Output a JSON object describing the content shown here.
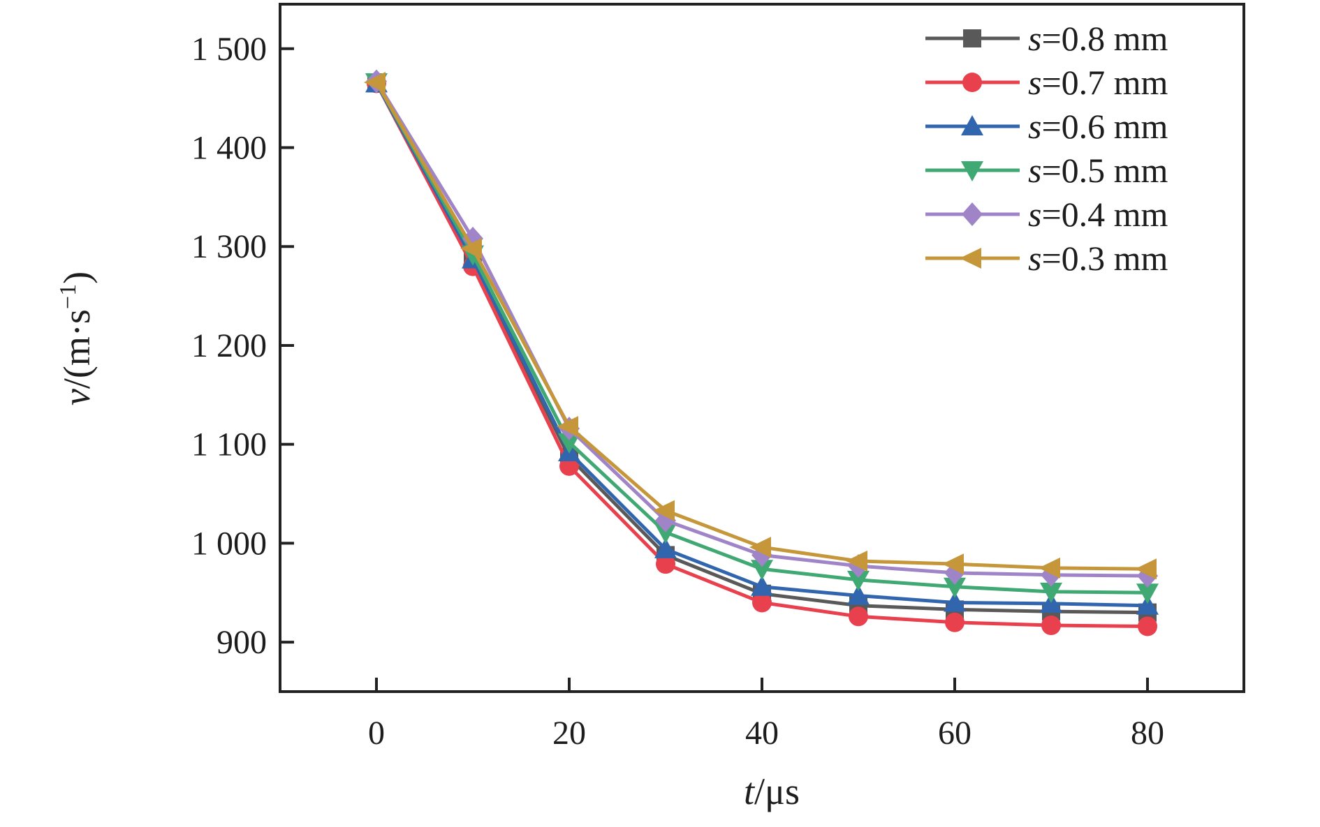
{
  "figure": {
    "background": "#ffffff",
    "frame_color": "#222222",
    "text_color": "#1d1d1d"
  },
  "chart_data": {
    "type": "line",
    "title": "",
    "xlabel": {
      "var": "t",
      "rest": "/μs"
    },
    "ylabel": {
      "var": "v",
      "pre": "/(m·s",
      "sup": "−1",
      "post": ")"
    },
    "xlim": [
      -10,
      90
    ],
    "ylim": [
      850,
      1545
    ],
    "grid": false,
    "legend_position": "top-right-inside",
    "x_ticks": [
      0,
      20,
      40,
      60,
      80
    ],
    "x_tick_labels": [
      "0",
      "20",
      "40",
      "60",
      "80"
    ],
    "y_ticks": [
      900,
      1000,
      1100,
      1200,
      1300,
      1400,
      1500
    ],
    "y_tick_labels": [
      "900",
      "1 000",
      "1 100",
      "1 200",
      "1 300",
      "1 400",
      "1 500"
    ],
    "x": [
      0,
      10,
      20,
      30,
      40,
      50,
      60,
      70,
      80
    ],
    "series": [
      {
        "label": {
          "var": "s",
          "rest": "=0.8 mm"
        },
        "color": "#595959",
        "marker": "square",
        "values": [
          1465,
          1285,
          1087,
          988,
          949,
          937,
          933,
          931,
          930
        ]
      },
      {
        "label": {
          "var": "s",
          "rest": "=0.7 mm"
        },
        "color": "#e8404d",
        "marker": "circle",
        "values": [
          1465,
          1280,
          1078,
          979,
          940,
          926,
          920,
          917,
          916
        ]
      },
      {
        "label": {
          "var": "s",
          "rest": "=0.6 mm"
        },
        "color": "#3166ae",
        "marker": "triangle-up",
        "values": [
          1465,
          1287,
          1092,
          994,
          956,
          947,
          940,
          939,
          937
        ]
      },
      {
        "label": {
          "var": "s",
          "rest": "=0.5 mm"
        },
        "color": "#3fa873",
        "marker": "triangle-down",
        "values": [
          1466,
          1292,
          1102,
          1011,
          974,
          963,
          956,
          951,
          950
        ]
      },
      {
        "label": {
          "var": "s",
          "rest": "=0.4 mm"
        },
        "color": "#a084c8",
        "marker": "diamond",
        "values": [
          1467,
          1308,
          1116,
          1023,
          988,
          977,
          970,
          968,
          967
        ]
      },
      {
        "label": {
          "var": "s",
          "rest": "=0.3 mm"
        },
        "color": "#c5973a",
        "marker": "triangle-left",
        "values": [
          1466,
          1298,
          1118,
          1033,
          996,
          982,
          979,
          975,
          974
        ]
      }
    ]
  }
}
